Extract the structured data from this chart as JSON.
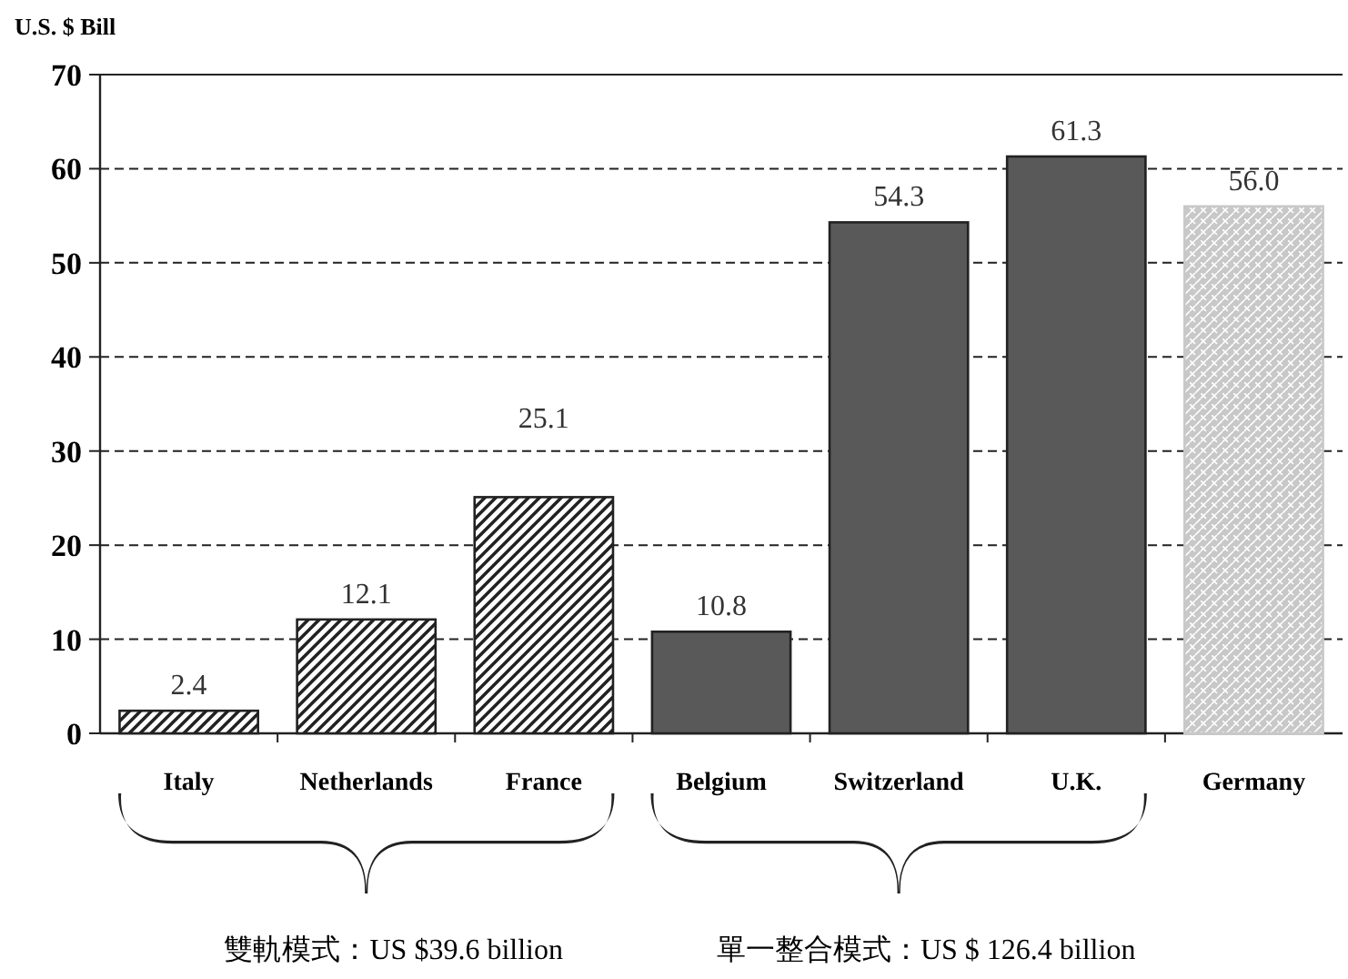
{
  "chart_data": {
    "type": "bar",
    "ylabel": "U.S. $ Bill",
    "categories": [
      "Italy",
      "Netherlands",
      "France",
      "Belgium",
      "Switzerland",
      "U.K.",
      "Germany"
    ],
    "values": [
      2.4,
      12.1,
      25.1,
      10.8,
      54.3,
      61.3,
      56.0
    ],
    "colors": [
      "#222222",
      "#222222",
      "#222222",
      "#595959",
      "#595959",
      "#595959",
      "#c8c8c8"
    ],
    "ylim": [
      0,
      70
    ],
    "yticks": [
      0,
      10,
      20,
      30,
      40,
      50,
      60,
      70
    ],
    "grid": "y",
    "value_labels": [
      "2.4",
      "12.1",
      "25.1",
      "10.8",
      "54.3",
      "61.3",
      "56.0"
    ],
    "annotations": [
      "雙軌模式：US $39.6 billion",
      "單一整合模式：US $ 126.4 billion"
    ]
  }
}
